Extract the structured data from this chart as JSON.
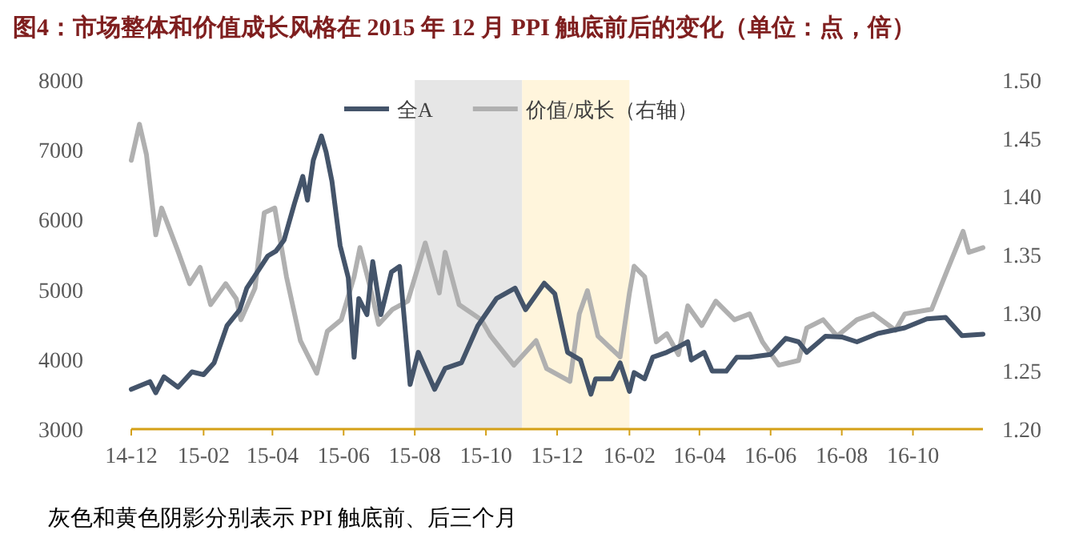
{
  "chart_data": {
    "type": "line",
    "title": "图4：市场整体和价值成长风格在 2015 年 12 月 PPI 触底前后的变化（单位：点，倍）",
    "annotations": [
      "灰色和黄色阴影分别表示 PPI 触底前、后三个月"
    ],
    "xlim": [
      "2014-12-01",
      "2016-11-30"
    ],
    "xticks": [
      {
        "value": "2014-12-01",
        "label": "14-12"
      },
      {
        "value": "2015-02-01",
        "label": "15-02"
      },
      {
        "value": "2015-04-01",
        "label": "15-04"
      },
      {
        "value": "2015-06-01",
        "label": "15-06"
      },
      {
        "value": "2015-08-01",
        "label": "15-08"
      },
      {
        "value": "2015-10-01",
        "label": "15-10"
      },
      {
        "value": "2015-12-01",
        "label": "15-12"
      },
      {
        "value": "2016-02-01",
        "label": "16-02"
      },
      {
        "value": "2016-04-01",
        "label": "16-04"
      },
      {
        "value": "2016-06-01",
        "label": "16-06"
      },
      {
        "value": "2016-08-01",
        "label": "16-08"
      },
      {
        "value": "2016-10-01",
        "label": "16-10"
      }
    ],
    "ylim": [
      3000,
      8000
    ],
    "yticks": [
      3000,
      4000,
      5000,
      6000,
      7000,
      8000
    ],
    "y2lim": [
      1.2,
      1.5
    ],
    "y2ticks": [
      {
        "value": 1.2,
        "label": "1.20"
      },
      {
        "value": 1.25,
        "label": "1.25"
      },
      {
        "value": 1.3,
        "label": "1.30"
      },
      {
        "value": 1.35,
        "label": "1.35"
      },
      {
        "value": 1.4,
        "label": "1.40"
      },
      {
        "value": 1.45,
        "label": "1.45"
      },
      {
        "value": 1.5,
        "label": "1.50"
      }
    ],
    "bands": [
      {
        "axis": "x",
        "from": "2015-08-01",
        "to": "2015-11-01",
        "color": "#e6e6e6"
      },
      {
        "axis": "x",
        "from": "2015-11-01",
        "to": "2016-02-01",
        "color": "#fff5dc"
      }
    ],
    "legend": "top",
    "grid": false,
    "series": [
      {
        "name": "全A",
        "color": "#44546a",
        "x": [
          "2014-12-01",
          "2014-12-17",
          "2014-12-22",
          "2014-12-29",
          "2015-01-10",
          "2015-01-22",
          "2015-02-01",
          "2015-02-10",
          "2015-02-21",
          "2015-03-04",
          "2015-03-10",
          "2015-03-19",
          "2015-03-28",
          "2015-04-04",
          "2015-04-11",
          "2015-04-20",
          "2015-04-27",
          "2015-05-01",
          "2015-05-06",
          "2015-05-13",
          "2015-05-17",
          "2015-05-22",
          "2015-05-29",
          "2015-06-05",
          "2015-06-10",
          "2015-06-14",
          "2015-06-21",
          "2015-06-26",
          "2015-07-03",
          "2015-07-12",
          "2015-07-19",
          "2015-07-28",
          "2015-08-04",
          "2015-08-18",
          "2015-08-27",
          "2015-09-10",
          "2015-09-24",
          "2015-10-10",
          "2015-10-26",
          "2015-11-04",
          "2015-11-20",
          "2015-11-29",
          "2015-12-10",
          "2015-12-21",
          "2015-12-30",
          "2016-01-03",
          "2016-01-17",
          "2016-01-24",
          "2016-02-01",
          "2016-02-05",
          "2016-02-14",
          "2016-02-21",
          "2016-03-04",
          "2016-03-14",
          "2016-03-22",
          "2016-03-25",
          "2016-04-05",
          "2016-04-12",
          "2016-04-24",
          "2016-05-03",
          "2016-05-14",
          "2016-06-01",
          "2016-06-14",
          "2016-06-25",
          "2016-07-02",
          "2016-07-18",
          "2016-08-01",
          "2016-08-14",
          "2016-09-01",
          "2016-09-24",
          "2016-10-13",
          "2016-10-29",
          "2016-11-12",
          "2016-11-30"
        ],
        "values": [
          3570,
          3680,
          3520,
          3750,
          3600,
          3820,
          3780,
          3950,
          4480,
          4710,
          5020,
          5250,
          5480,
          5550,
          5710,
          6240,
          6620,
          6280,
          6850,
          7200,
          6970,
          6550,
          5630,
          5170,
          4030,
          4870,
          4640,
          5400,
          4640,
          5250,
          5330,
          3640,
          4100,
          3570,
          3870,
          3950,
          4480,
          4870,
          5020,
          4710,
          5090,
          4940,
          4100,
          3990,
          3500,
          3720,
          3720,
          3950,
          3540,
          3810,
          3720,
          4030,
          4100,
          4180,
          4250,
          3990,
          4100,
          3830,
          3830,
          4030,
          4030,
          4070,
          4300,
          4250,
          4100,
          4330,
          4320,
          4250,
          4370,
          4450,
          4580,
          4600,
          4340,
          4360
        ]
      },
      {
        "name": "价值/成长（右轴）",
        "color": "#b0b0b0",
        "axis": "y2",
        "x": [
          "2014-12-01",
          "2014-12-08",
          "2014-12-14",
          "2014-12-22",
          "2014-12-27",
          "2015-01-10",
          "2015-01-20",
          "2015-01-29",
          "2015-02-07",
          "2015-02-20",
          "2015-03-01",
          "2015-03-05",
          "2015-03-17",
          "2015-03-25",
          "2015-04-03",
          "2015-04-13",
          "2015-04-25",
          "2015-05-09",
          "2015-05-18",
          "2015-05-30",
          "2015-06-10",
          "2015-06-15",
          "2015-06-25",
          "2015-07-01",
          "2015-07-13",
          "2015-07-26",
          "2015-08-10",
          "2015-08-22",
          "2015-08-27",
          "2015-09-08",
          "2015-09-27",
          "2015-10-05",
          "2015-10-25",
          "2015-11-13",
          "2015-11-22",
          "2015-12-12",
          "2015-12-20",
          "2015-12-27",
          "2016-01-05",
          "2016-01-24",
          "2016-02-01",
          "2016-02-05",
          "2016-02-14",
          "2016-02-24",
          "2016-03-04",
          "2016-03-14",
          "2016-03-22",
          "2016-04-03",
          "2016-04-15",
          "2016-05-01",
          "2016-05-14",
          "2016-05-25",
          "2016-06-08",
          "2016-06-25",
          "2016-07-02",
          "2016-07-16",
          "2016-07-28",
          "2016-08-14",
          "2016-08-28",
          "2016-09-16",
          "2016-09-24",
          "2016-10-17",
          "2016-10-31",
          "2016-11-13",
          "2016-11-18",
          "2016-11-30"
        ],
        "values": [
          1.431,
          1.462,
          1.436,
          1.367,
          1.39,
          1.353,
          1.325,
          1.339,
          1.307,
          1.325,
          1.312,
          1.294,
          1.321,
          1.386,
          1.39,
          1.331,
          1.276,
          1.248,
          1.284,
          1.294,
          1.331,
          1.356,
          1.317,
          1.29,
          1.303,
          1.31,
          1.36,
          1.317,
          1.352,
          1.307,
          1.294,
          1.28,
          1.255,
          1.276,
          1.252,
          1.241,
          1.299,
          1.319,
          1.28,
          1.262,
          1.317,
          1.34,
          1.331,
          1.275,
          1.282,
          1.264,
          1.306,
          1.289,
          1.31,
          1.294,
          1.299,
          1.275,
          1.255,
          1.259,
          1.287,
          1.294,
          1.28,
          1.294,
          1.299,
          1.285,
          1.299,
          1.303,
          1.338,
          1.37,
          1.352,
          1.356
        ]
      }
    ]
  }
}
